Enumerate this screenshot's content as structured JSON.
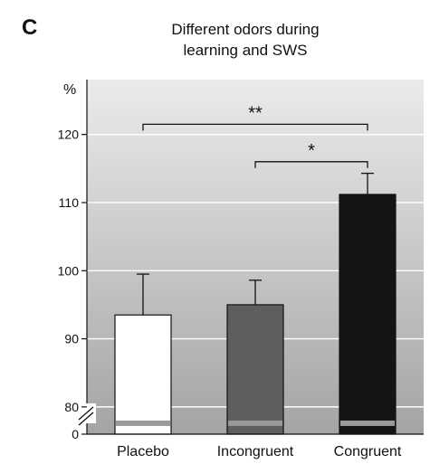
{
  "panel_label": "C",
  "chart_data": {
    "type": "bar",
    "title_line1": "Different odors during",
    "title_line2": "learning and SWS",
    "ylabel": "%",
    "categories": [
      "Placebo",
      "Incongruent",
      "Congruent"
    ],
    "values": [
      93.5,
      95.0,
      111.2
    ],
    "errors": [
      6.0,
      3.6,
      3.1
    ],
    "bar_colors": [
      "#ffffff",
      "#5e5e5e",
      "#141414"
    ],
    "ylim": [
      76,
      123
    ],
    "y_ticks": [
      80,
      90,
      100,
      110,
      120
    ],
    "y_zero_label": "0",
    "axis_break": true,
    "baseline_stripe_color": "#9a9a9a",
    "background_gradient": [
      "#ebebeb",
      "#a4a4a4"
    ],
    "grid": true,
    "significance": [
      {
        "from": 0,
        "to": 2,
        "label": "**",
        "y": 121.5
      },
      {
        "from": 1,
        "to": 2,
        "label": "*",
        "y": 116.0
      }
    ]
  }
}
